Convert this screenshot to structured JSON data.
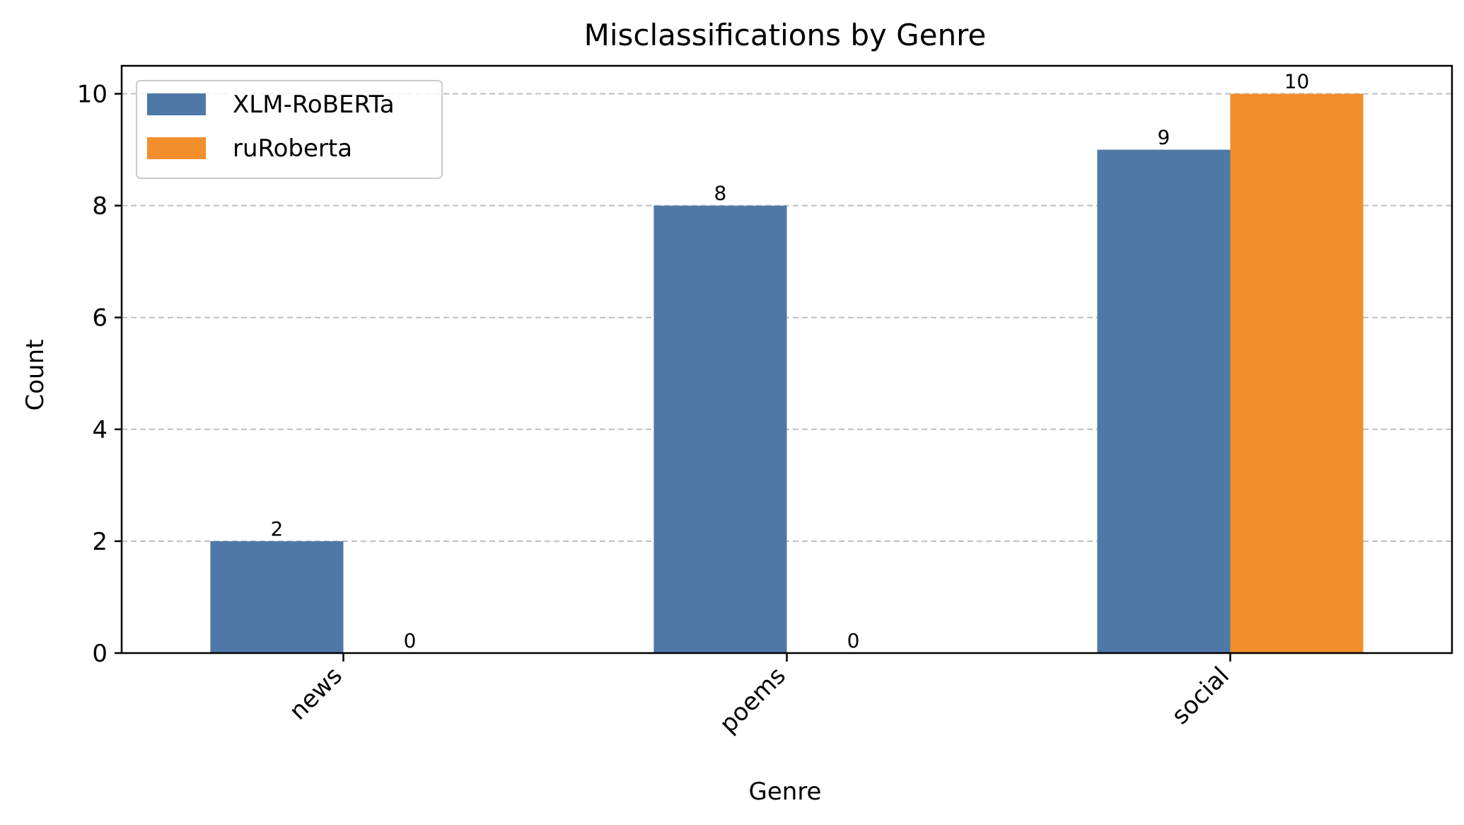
{
  "chart_data": {
    "type": "bar",
    "title": "Misclassifications by Genre",
    "xlabel": "Genre",
    "ylabel": "Count",
    "categories": [
      "news",
      "poems",
      "social"
    ],
    "series": [
      {
        "name": "XLM-RoBERTa",
        "values": [
          2,
          8,
          9
        ],
        "color": "#4e79a7"
      },
      {
        "name": "ruRoberta",
        "values": [
          0,
          0,
          10
        ],
        "color": "#f28e2b"
      }
    ],
    "ylim": [
      0,
      10.5
    ],
    "yticks": [
      0,
      2,
      4,
      6,
      8,
      10
    ],
    "grid": "y-dashed",
    "legend_position": "top-left",
    "x_tick_rotation": -45
  }
}
